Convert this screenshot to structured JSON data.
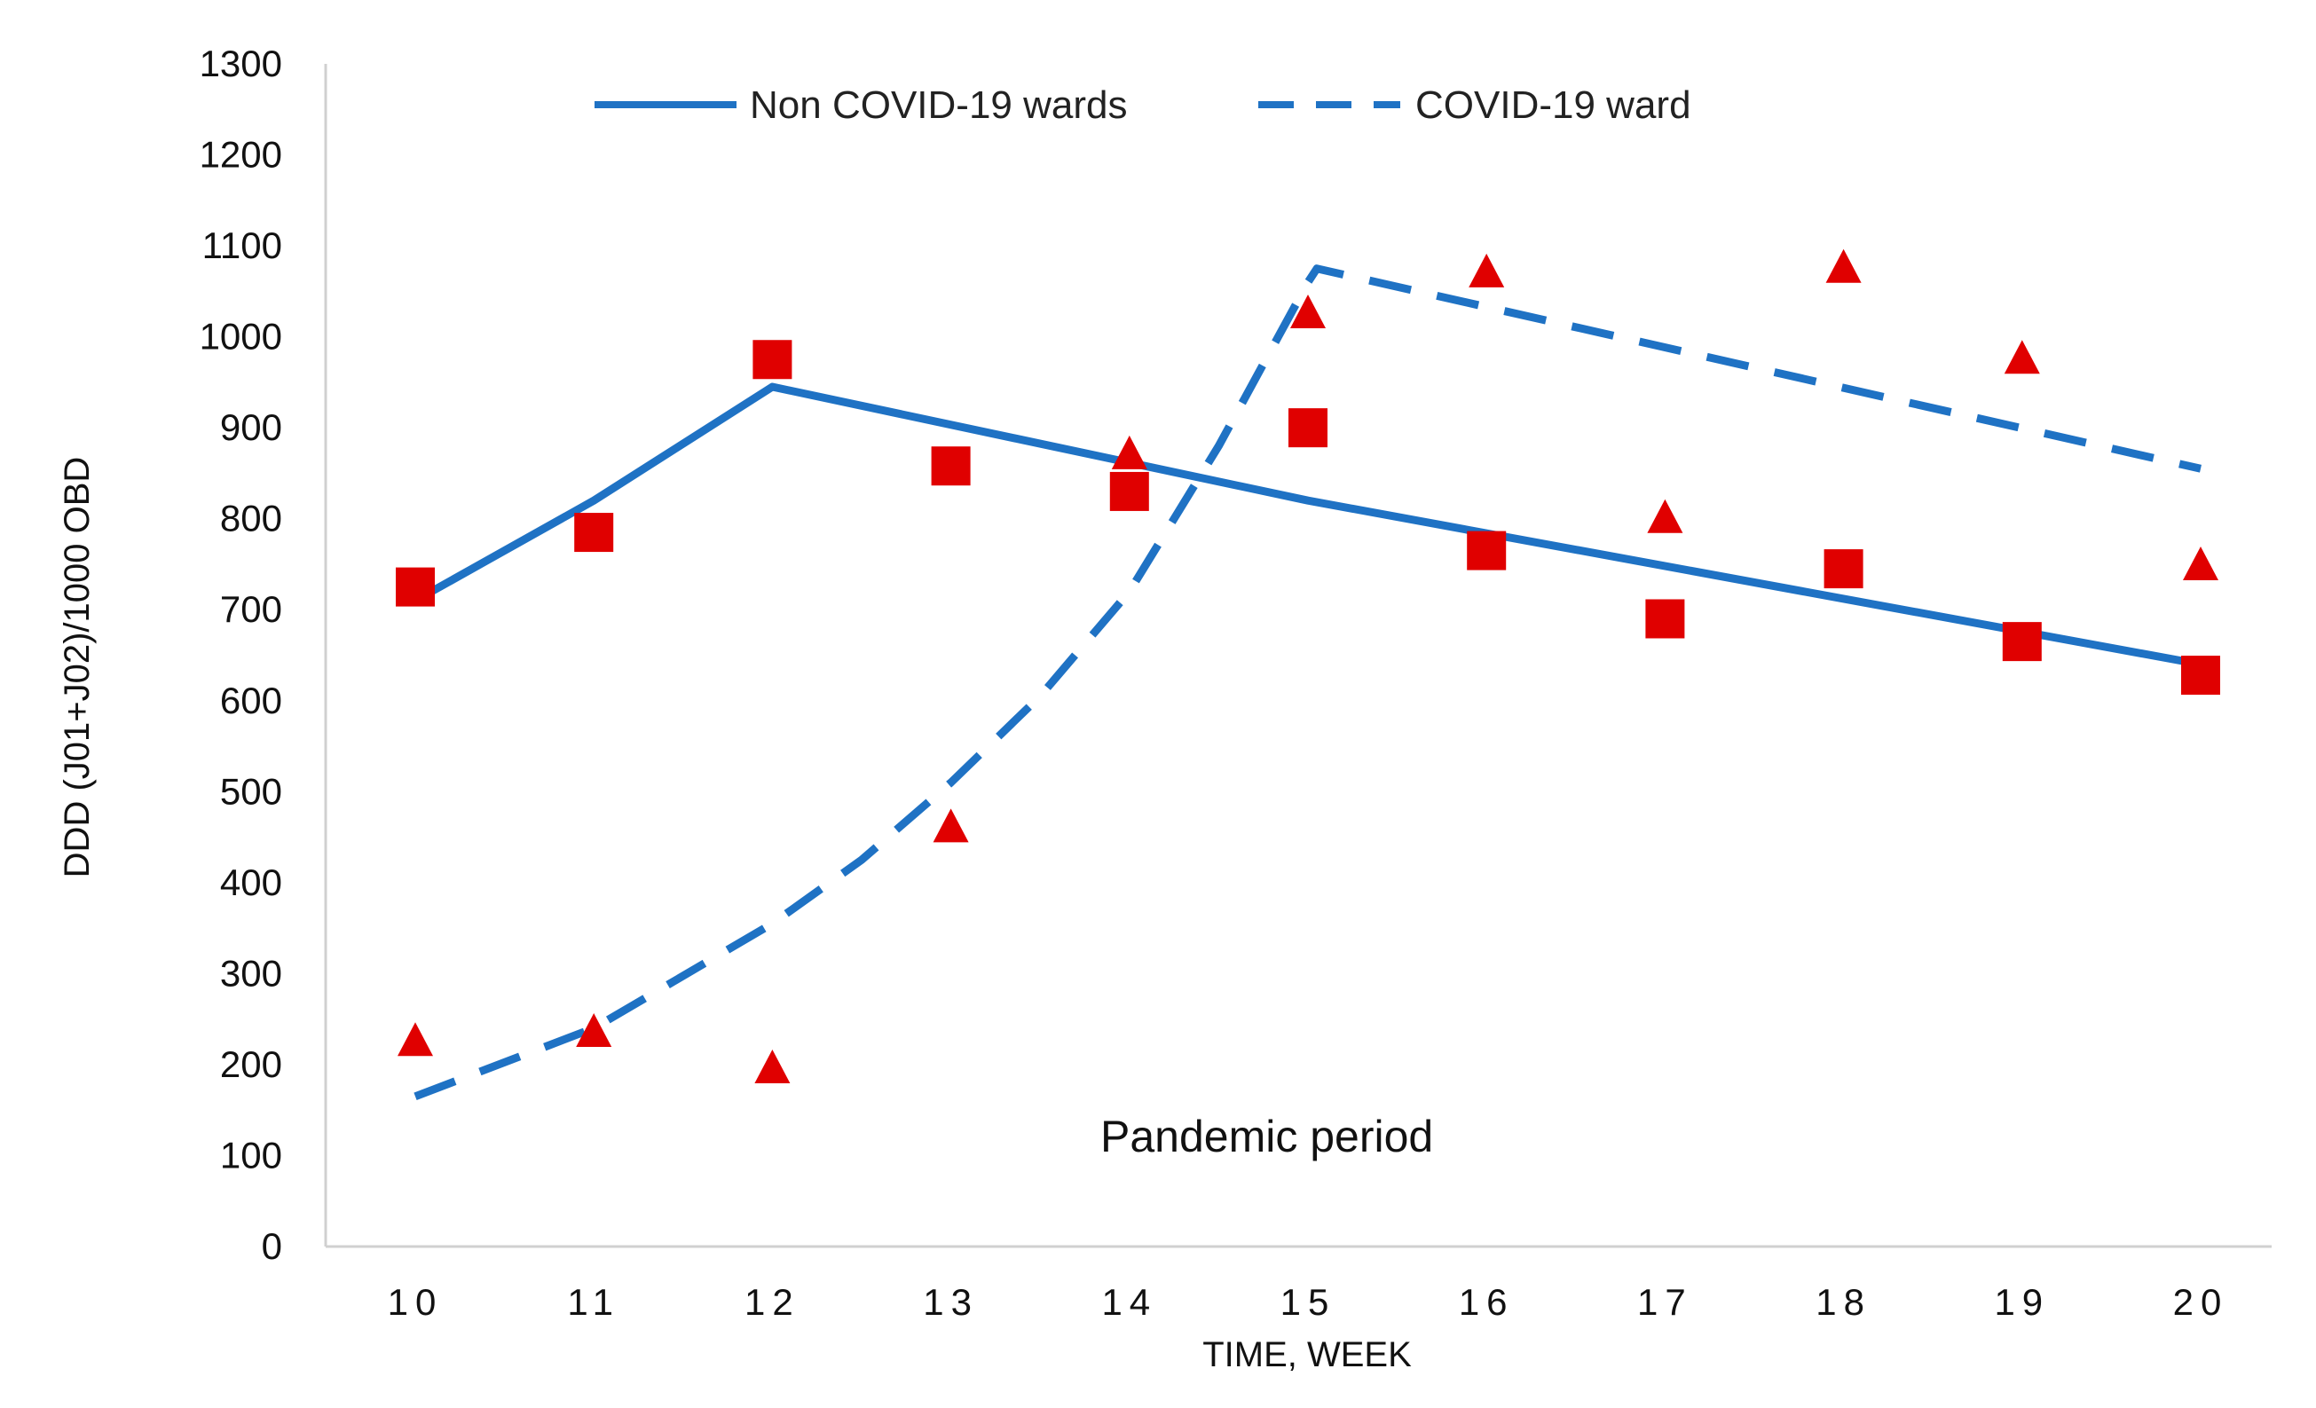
{
  "chart_data": {
    "type": "line",
    "xlabel": "TIME, WEEK",
    "ylabel": "DDD (J01+J02)/1000 OBD",
    "ylim": [
      0,
      1300
    ],
    "y_ticks": [
      0,
      100,
      200,
      300,
      400,
      500,
      600,
      700,
      800,
      900,
      1000,
      1100,
      1200,
      1300
    ],
    "categories": [
      10,
      11,
      12,
      13,
      14,
      15,
      16,
      17,
      18,
      19,
      20
    ],
    "annotation": "Pandemic period",
    "colors": {
      "line": "#1F72C4",
      "markers": "#E00000",
      "axis": "#D0D0D0"
    },
    "series": [
      {
        "name": "Non COVID-19 wards",
        "style": "solid",
        "fit_x": [
          10,
          11,
          12,
          15,
          20
        ],
        "fit_y": [
          710,
          820,
          945,
          820,
          640
        ],
        "obs_marker": "square",
        "obs_values": [
          725,
          785,
          975,
          858,
          830,
          900,
          765,
          690,
          745,
          665,
          628
        ]
      },
      {
        "name": "COVID-19 ward",
        "style": "dashed",
        "fit_x": [
          10,
          11,
          12,
          12.5,
          13,
          13.5,
          14,
          14.5,
          15,
          15.05,
          20
        ],
        "fit_y": [
          165,
          240,
          355,
          425,
          510,
          605,
          720,
          880,
          1060,
          1075,
          855
        ],
        "obs_marker": "triangle",
        "obs_values": [
          225,
          235,
          195,
          460,
          870,
          1025,
          1070,
          800,
          1075,
          975,
          748
        ]
      }
    ]
  }
}
